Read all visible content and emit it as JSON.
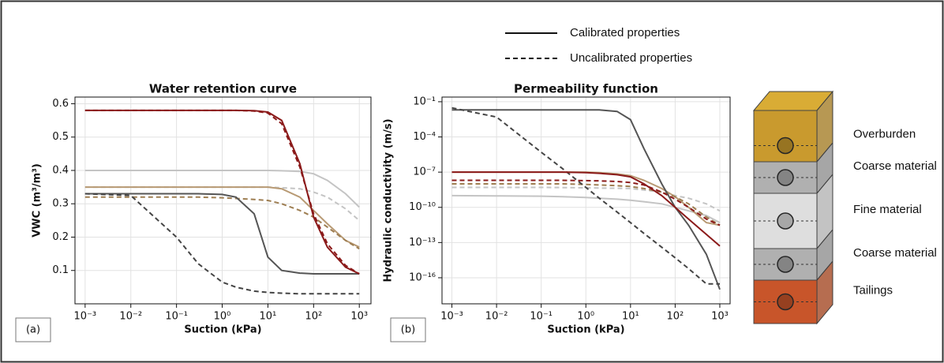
{
  "legend": [
    {
      "label": "Calibrated properties",
      "dash": false
    },
    {
      "label": "Uncalibrated properties",
      "dash": true
    }
  ],
  "chart_data": [
    {
      "type": "line",
      "title": "Water retention curve",
      "panel_label": "(a)",
      "xlabel": "Suction (kPa)",
      "ylabel": "VWC (m³/m³)",
      "xscale": "log",
      "yscale": "linear",
      "grid": true,
      "xlim": [
        0.0006,
        1800
      ],
      "ylim": [
        0,
        0.62
      ],
      "xticks": [
        {
          "value": 0.001,
          "label": "10⁻³"
        },
        {
          "value": 0.01,
          "label": "10⁻²"
        },
        {
          "value": 0.1,
          "label": "10⁻¹"
        },
        {
          "value": 1,
          "label": "10⁰"
        },
        {
          "value": 10,
          "label": "10¹"
        },
        {
          "value": 100,
          "label": "10²"
        },
        {
          "value": 1000,
          "label": "10³"
        }
      ],
      "yticks": [
        0.1,
        0.2,
        0.3,
        0.4,
        0.5,
        0.6
      ],
      "x": [
        0.001,
        0.01,
        0.1,
        0.3,
        1,
        2,
        5,
        10,
        20,
        50,
        100,
        200,
        500,
        1000
      ],
      "series": [
        {
          "color": "#c4c4c4",
          "dash": false,
          "values": [
            0.4,
            0.4,
            0.4,
            0.4,
            0.4,
            0.4,
            0.4,
            0.4,
            0.399,
            0.397,
            0.39,
            0.37,
            0.33,
            0.29
          ]
        },
        {
          "color": "#c4c4c4",
          "dash": true,
          "values": [
            0.35,
            0.35,
            0.35,
            0.35,
            0.35,
            0.35,
            0.35,
            0.35,
            0.348,
            0.345,
            0.335,
            0.32,
            0.285,
            0.25
          ]
        },
        {
          "color": "#b89a74",
          "dash": false,
          "values": [
            0.35,
            0.35,
            0.35,
            0.35,
            0.35,
            0.35,
            0.35,
            0.35,
            0.345,
            0.32,
            0.28,
            0.24,
            0.19,
            0.17
          ]
        },
        {
          "color": "#9e7e52",
          "dash": true,
          "values": [
            0.32,
            0.32,
            0.32,
            0.32,
            0.318,
            0.316,
            0.313,
            0.31,
            0.3,
            0.28,
            0.26,
            0.23,
            0.19,
            0.165
          ]
        },
        {
          "color": "#555555",
          "dash": false,
          "values": [
            0.33,
            0.33,
            0.33,
            0.33,
            0.328,
            0.32,
            0.27,
            0.14,
            0.1,
            0.092,
            0.09,
            0.09,
            0.09,
            0.09
          ]
        },
        {
          "color": "#444444",
          "dash": true,
          "values": [
            0.33,
            0.325,
            0.2,
            0.12,
            0.065,
            0.05,
            0.038,
            0.034,
            0.032,
            0.03,
            0.03,
            0.03,
            0.03,
            0.03
          ]
        },
        {
          "color": "#8b1a1a",
          "dash": false,
          "values": [
            0.58,
            0.58,
            0.58,
            0.58,
            0.58,
            0.58,
            0.579,
            0.575,
            0.55,
            0.42,
            0.26,
            0.17,
            0.11,
            0.09
          ]
        },
        {
          "color": "#8b1a1a",
          "dash": true,
          "values": [
            0.58,
            0.58,
            0.58,
            0.58,
            0.58,
            0.58,
            0.578,
            0.572,
            0.54,
            0.41,
            0.27,
            0.18,
            0.115,
            0.09
          ]
        }
      ]
    },
    {
      "type": "line",
      "title": "Permeability function",
      "panel_label": "(b)",
      "xlabel": "Suction (kPa)",
      "ylabel": "Hydraulic conductivity (m/s)",
      "xscale": "log",
      "yscale": "log",
      "grid": true,
      "xlim": [
        0.0006,
        1700
      ],
      "ylim": [
        6e-19,
        0.25
      ],
      "xticks": [
        {
          "value": 0.001,
          "label": "10⁻³"
        },
        {
          "value": 0.01,
          "label": "10⁻²"
        },
        {
          "value": 0.1,
          "label": "10⁻¹"
        },
        {
          "value": 1,
          "label": "10⁰"
        },
        {
          "value": 10,
          "label": "10¹"
        },
        {
          "value": 100,
          "label": "10²"
        },
        {
          "value": 1000,
          "label": "10³"
        }
      ],
      "yticks": [
        {
          "value": 1e-16,
          "label": "10⁻¹⁶"
        },
        {
          "value": 1e-13,
          "label": "10⁻¹³"
        },
        {
          "value": 1e-10,
          "label": "10⁻¹⁰"
        },
        {
          "value": 1e-07,
          "label": "10⁻⁷"
        },
        {
          "value": 0.0001,
          "label": "10⁻⁴"
        },
        {
          "value": 0.1,
          "label": "10⁻¹"
        }
      ],
      "x": [
        0.001,
        0.01,
        0.1,
        0.3,
        1,
        2,
        5,
        10,
        20,
        50,
        100,
        200,
        500,
        1000
      ],
      "series": [
        {
          "color": "#c4c4c4",
          "dash": false,
          "values": [
            1e-09,
            9.5e-10,
            9e-10,
            8e-10,
            7e-10,
            6e-10,
            5e-10,
            4e-10,
            3e-10,
            2e-10,
            1e-10,
            5e-11,
            2e-11,
            5e-12
          ]
        },
        {
          "color": "#c4c4c4",
          "dash": true,
          "values": [
            5e-09,
            5e-09,
            5e-09,
            4.8e-09,
            4.6e-09,
            4.4e-09,
            4.2e-09,
            4e-09,
            3e-09,
            2e-09,
            1e-09,
            6e-10,
            2e-10,
            5e-11
          ]
        },
        {
          "color": "#b89a74",
          "dash": false,
          "values": [
            1e-07,
            1e-07,
            1e-07,
            1e-07,
            1e-07,
            9e-08,
            7e-08,
            5e-08,
            2e-08,
            4e-09,
            8e-10,
            1e-10,
            5e-12,
            3e-12
          ]
        },
        {
          "color": "#9e7e52",
          "dash": true,
          "values": [
            1e-08,
            1e-08,
            1e-08,
            1e-08,
            9e-09,
            8e-09,
            7e-09,
            6e-09,
            4e-09,
            2e-09,
            8e-10,
            2e-10,
            1.5e-11,
            3e-12
          ]
        },
        {
          "color": "#555555",
          "dash": false,
          "values": [
            0.02,
            0.02,
            0.02,
            0.02,
            0.02,
            0.02,
            0.015,
            0.003,
            1e-05,
            1e-08,
            1e-10,
            3e-12,
            1e-14,
            1e-17
          ]
        },
        {
          "color": "#444444",
          "dash": true,
          "values": [
            0.03,
            0.005,
            5e-06,
            2e-07,
            5e-09,
            6e-10,
            4e-11,
            5e-12,
            6e-13,
            4e-14,
            5e-15,
            6e-16,
            3e-17,
            3e-17
          ]
        },
        {
          "color": "#8b1a1a",
          "dash": false,
          "values": [
            1e-07,
            1e-07,
            1e-07,
            1e-07,
            9e-08,
            8e-08,
            6e-08,
            4e-08,
            1e-08,
            1e-09,
            1e-10,
            1e-11,
            5e-13,
            5e-14
          ]
        },
        {
          "color": "#8b1a1a",
          "dash": true,
          "values": [
            2e-08,
            2e-08,
            2e-08,
            2e-08,
            1.9e-08,
            1.8e-08,
            1.6e-08,
            1.3e-08,
            8e-09,
            2e-09,
            5e-10,
            1e-10,
            1e-11,
            3e-12
          ]
        }
      ]
    }
  ],
  "diagram": {
    "layers": [
      {
        "label": "Overburden",
        "color": "#c99a2e"
      },
      {
        "label": "Coarse material",
        "color": "#b0b0b0"
      },
      {
        "label": "Fine material",
        "color": "#dedede"
      },
      {
        "label": "Coarse material",
        "color": "#b0b0b0"
      },
      {
        "label": "Tailings",
        "color": "#c8552a"
      }
    ]
  }
}
